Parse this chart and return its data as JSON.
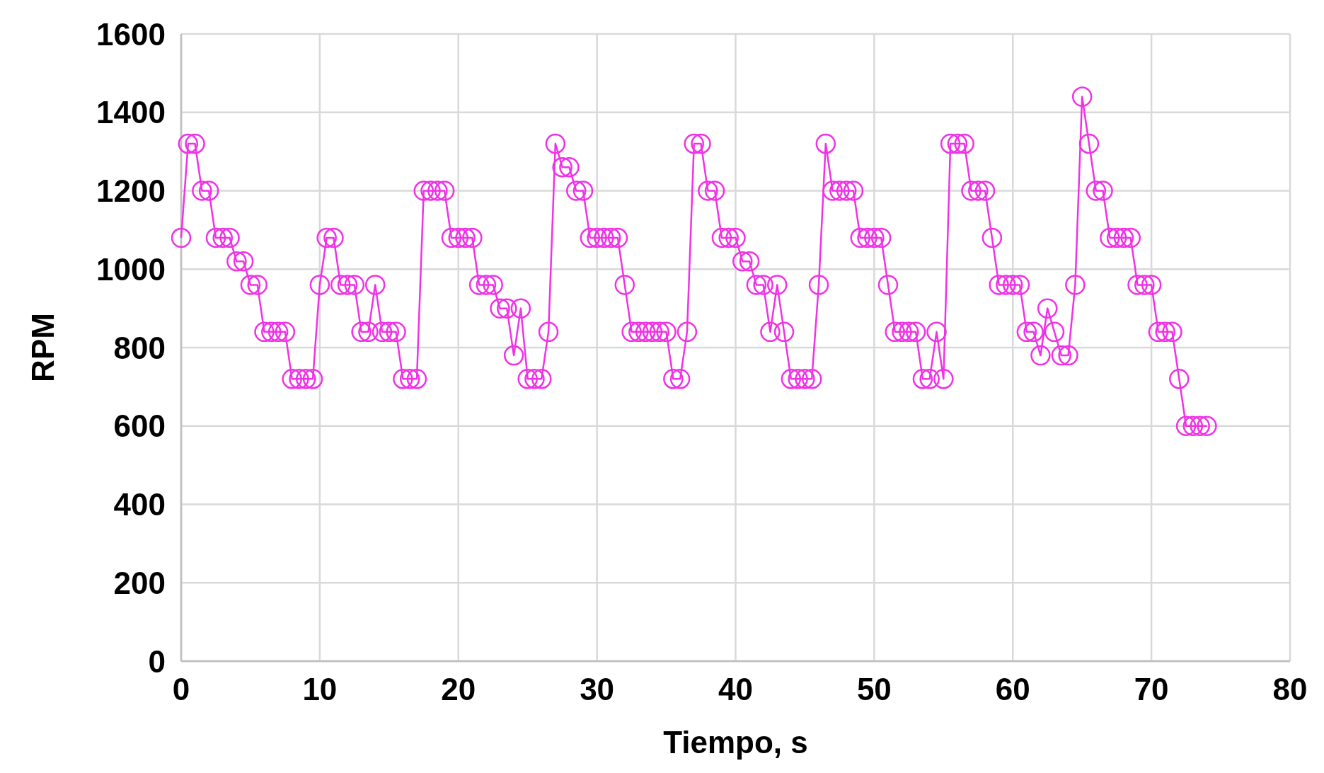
{
  "chart_data": {
    "type": "line",
    "xlabel": "Tiempo, s",
    "ylabel": "RPM",
    "xlim": [
      0,
      80
    ],
    "xticks": [
      0,
      10,
      20,
      30,
      40,
      50,
      60,
      70,
      80
    ],
    "ylim": [
      0,
      1600
    ],
    "yticks": [
      0,
      200,
      400,
      600,
      800,
      1000,
      1200,
      1400,
      1600
    ],
    "grid": true,
    "marker": "circle",
    "line_style": "solid",
    "x": [
      0,
      0.5,
      1,
      1.5,
      2,
      2.5,
      3,
      3.5,
      4,
      4.5,
      5,
      5.5,
      6,
      6.5,
      7,
      7.5,
      8,
      8.5,
      9,
      9.5,
      10,
      10.5,
      11,
      11.5,
      12,
      12.5,
      13,
      13.5,
      14,
      14.5,
      15,
      15.5,
      16,
      16.5,
      17,
      17.5,
      18,
      18.5,
      19,
      19.5,
      20,
      20.5,
      21,
      21.5,
      22,
      22.5,
      23,
      23.5,
      24,
      24.5,
      25,
      25.5,
      26,
      26.5,
      27,
      27.5,
      28,
      28.5,
      29,
      29.5,
      30,
      30.5,
      31,
      31.5,
      32,
      32.5,
      33,
      33.5,
      34,
      34.5,
      35,
      35.5,
      36,
      36.5,
      37,
      37.5,
      38,
      38.5,
      39,
      39.5,
      40,
      40.5,
      41,
      41.5,
      42,
      42.5,
      43,
      43.5,
      44,
      44.5,
      45,
      45.5,
      46,
      46.5,
      47,
      47.5,
      48,
      48.5,
      49,
      49.5,
      50,
      50.5,
      51,
      51.5,
      52,
      52.5,
      53,
      53.5,
      54,
      54.5,
      55,
      55.5,
      56,
      56.5,
      57,
      57.5,
      58,
      58.5,
      59,
      59.5,
      60,
      60.5,
      61,
      61.5,
      62,
      62.5,
      63,
      63.5,
      64,
      64.5,
      65,
      65.5,
      66,
      66.5,
      67,
      67.5,
      68,
      68.5,
      69,
      69.5,
      70,
      70.5,
      71,
      71.5,
      72,
      72.5,
      73,
      73.5,
      74
    ],
    "series": [
      {
        "color": "#f032e6",
        "values": [
          1080,
          1320,
          1320,
          1200,
          1200,
          1080,
          1080,
          1080,
          1020,
          1020,
          960,
          960,
          840,
          840,
          840,
          840,
          720,
          720,
          720,
          720,
          960,
          1080,
          1080,
          960,
          960,
          960,
          840,
          840,
          960,
          840,
          840,
          840,
          720,
          720,
          720,
          1200,
          1200,
          1200,
          1200,
          1080,
          1080,
          1080,
          1080,
          960,
          960,
          960,
          900,
          900,
          780,
          900,
          720,
          720,
          720,
          840,
          1320,
          1260,
          1260,
          1200,
          1200,
          1080,
          1080,
          1080,
          1080,
          1080,
          960,
          840,
          840,
          840,
          840,
          840,
          840,
          720,
          720,
          840,
          1320,
          1320,
          1200,
          1200,
          1080,
          1080,
          1080,
          1020,
          1020,
          960,
          960,
          840,
          960,
          840,
          720,
          720,
          720,
          720,
          960,
          1320,
          1200,
          1200,
          1200,
          1200,
          1080,
          1080,
          1080,
          1080,
          960,
          840,
          840,
          840,
          840,
          720,
          720,
          840,
          720,
          1320,
          1320,
          1320,
          1200,
          1200,
          1200,
          1080,
          960,
          960,
          960,
          960,
          840,
          840,
          780,
          900,
          840,
          780,
          780,
          960,
          1440,
          1320,
          1200,
          1200,
          1080,
          1080,
          1080,
          1080,
          960,
          960,
          960,
          840,
          840,
          840,
          720,
          600,
          600,
          600,
          600
        ]
      }
    ]
  }
}
